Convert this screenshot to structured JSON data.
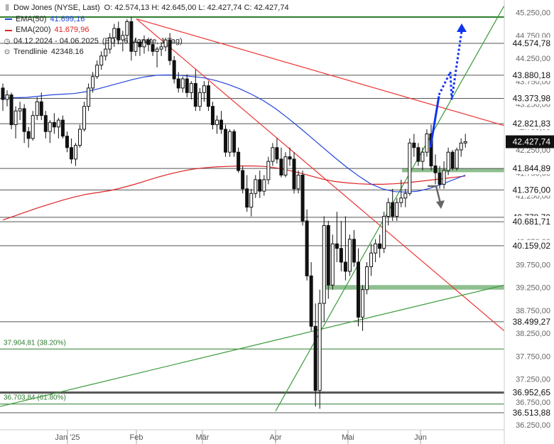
{
  "legend": {
    "instrument": "Dow Jones (NYSE, Last)",
    "ohlc": "O: 42.574,13  H: 42.645,00  L: 42.427,74  C: 42.427,74",
    "ema50_label": "EMA(50)",
    "ema50_value": "41.699,16",
    "ema200_label": "EMA(200)",
    "ema200_value": "41.679,96",
    "range": "04.12.2024 - 04.06.2025",
    "range_detail": "(EDT, 6 Monate, 1 Tag)",
    "trendline_label": "Trendlinie",
    "trendline_value": "42348.16"
  },
  "colors": {
    "candle": "#111111",
    "ema50": "#2244dd",
    "ema200": "#dd2222",
    "downtrend": "#ee3333",
    "uptrend": "#3a9a3a",
    "support_zone": "#8fbf8f",
    "arrow_blue": "#1133ee",
    "arrow_gray": "#666666",
    "level_line": "#555555"
  },
  "chart_data": {
    "type": "candlestick",
    "x_ticks": [
      "Jan '25",
      "Feb",
      "Mär",
      "Apr",
      "Mai",
      "Jun"
    ],
    "y_axis": {
      "min": 36250,
      "max": 45250,
      "step": 500,
      "tick_labels": [
        "45.250,00",
        "44.750,00",
        "44.250,00",
        "43.750,00",
        "43.250,00",
        "42.750,00",
        "42.250,00",
        "41.750,00",
        "41.250,00",
        "40.750,00",
        "40.250,00",
        "39.750,00",
        "39.250,00",
        "38.750,00",
        "38.250,00",
        "37.750,00",
        "37.250,00",
        "36.750,00",
        "36.250,00"
      ]
    },
    "levels": [
      {
        "value": 45150,
        "label": "",
        "color": "#2e7d2e"
      },
      {
        "value": 44574.78,
        "label": "44.574,78"
      },
      {
        "value": 43880.18,
        "label": "43.880,18"
      },
      {
        "value": 43373.98,
        "label": "43.373,98"
      },
      {
        "value": 42821.83,
        "label": "42.821,83"
      },
      {
        "value": 41844.89,
        "label": "41.844,89"
      },
      {
        "value": 41376.0,
        "label": "41.376,00"
      },
      {
        "value": 40778.7,
        "label": "40.778,70"
      },
      {
        "value": 40681.71,
        "label": "40.681,71"
      },
      {
        "value": 40159.02,
        "label": "40.159,02"
      },
      {
        "value": 38499.27,
        "label": "38.499,27"
      },
      {
        "value": 36952.65,
        "label": "36.952,65"
      },
      {
        "value": 36513.88,
        "label": "36.513,88"
      }
    ],
    "last_price": {
      "value": 42427.74,
      "label": "42.427,74"
    },
    "fib_levels": [
      {
        "value": 37904.81,
        "label": "37.904,81 (38.20%)",
        "color": "#2e7d2e"
      },
      {
        "value": 36703.84,
        "label": "36.703,84 (61.80%)",
        "color": "#2e7d2e"
      }
    ],
    "zones": [
      {
        "from": 39300,
        "to": 39200,
        "color": "#8fbf8f"
      },
      {
        "from": 41840,
        "to": 41780,
        "color": "#8fbf8f"
      }
    ],
    "candles": [
      [
        43600,
        43700,
        43100,
        43350
      ],
      [
        43350,
        43550,
        43200,
        43450
      ],
      [
        43450,
        43500,
        42700,
        42800
      ],
      [
        42800,
        43200,
        42500,
        43100
      ],
      [
        43100,
        43300,
        42900,
        43150
      ],
      [
        43150,
        43250,
        42400,
        42650
      ],
      [
        42650,
        42750,
        42300,
        42500
      ],
      [
        42500,
        43100,
        42450,
        43000
      ],
      [
        43000,
        43400,
        42900,
        43300
      ],
      [
        43300,
        43500,
        42900,
        43000
      ],
      [
        43000,
        43100,
        42500,
        42650
      ],
      [
        42650,
        42900,
        42400,
        42850
      ],
      [
        42850,
        43050,
        42600,
        42750
      ],
      [
        42750,
        42950,
        42500,
        42900
      ],
      [
        42900,
        43000,
        42500,
        42550
      ],
      [
        42550,
        42650,
        42200,
        42300
      ],
      [
        42300,
        42500,
        41950,
        42050
      ],
      [
        42050,
        42400,
        41900,
        42350
      ],
      [
        42350,
        42800,
        42300,
        42700
      ],
      [
        42700,
        43300,
        42650,
        43200
      ],
      [
        43200,
        43700,
        43100,
        43600
      ],
      [
        43600,
        43950,
        43500,
        43850
      ],
      [
        43850,
        44200,
        43800,
        44100
      ],
      [
        44100,
        44400,
        44000,
        44300
      ],
      [
        44300,
        44600,
        44200,
        44450
      ],
      [
        44450,
        44800,
        44350,
        44700
      ],
      [
        44700,
        45000,
        44500,
        44900
      ],
      [
        44900,
        45050,
        44550,
        44650
      ],
      [
        44650,
        44850,
        44400,
        44750
      ],
      [
        44750,
        45100,
        44600,
        45050
      ],
      [
        45050,
        45150,
        44200,
        44400
      ],
      [
        44400,
        44700,
        44300,
        44600
      ],
      [
        44600,
        44650,
        44300,
        44500
      ],
      [
        44500,
        44750,
        44350,
        44650
      ],
      [
        44650,
        44700,
        44400,
        44550
      ],
      [
        44550,
        44650,
        44300,
        44400
      ],
      [
        44400,
        44500,
        44050,
        44450
      ],
      [
        44450,
        44600,
        44300,
        44500
      ],
      [
        44500,
        44700,
        44400,
        44650
      ],
      [
        44650,
        44800,
        44100,
        44200
      ],
      [
        44200,
        44300,
        43700,
        43800
      ],
      [
        43800,
        43950,
        43500,
        43600
      ],
      [
        43600,
        43850,
        43500,
        43800
      ],
      [
        43800,
        43900,
        43400,
        43500
      ],
      [
        43500,
        43750,
        43350,
        43700
      ],
      [
        43700,
        44000,
        43100,
        43200
      ],
      [
        43200,
        43600,
        43100,
        43500
      ],
      [
        43500,
        43750,
        43300,
        43650
      ],
      [
        43650,
        43750,
        43100,
        43200
      ],
      [
        43200,
        43300,
        42700,
        42800
      ],
      [
        42800,
        43000,
        42600,
        42900
      ],
      [
        42900,
        43100,
        42600,
        42700
      ],
      [
        42700,
        42800,
        42100,
        42200
      ],
      [
        42200,
        42700,
        42100,
        42650
      ],
      [
        42650,
        42700,
        42100,
        42200
      ],
      [
        42200,
        42300,
        41750,
        41800
      ],
      [
        41800,
        41900,
        41300,
        41400
      ],
      [
        41400,
        41700,
        40900,
        41000
      ],
      [
        41000,
        41400,
        40800,
        41300
      ],
      [
        41300,
        41700,
        41200,
        41600
      ],
      [
        41600,
        41800,
        41200,
        41350
      ],
      [
        41350,
        41700,
        41250,
        41600
      ],
      [
        41600,
        42100,
        41500,
        42000
      ],
      [
        42000,
        42400,
        41900,
        42300
      ],
      [
        42300,
        42500,
        41950,
        42050
      ],
      [
        42050,
        42300,
        41650,
        41700
      ],
      [
        41700,
        42200,
        41650,
        42100
      ],
      [
        42100,
        42300,
        41900,
        42050
      ],
      [
        42050,
        42200,
        41300,
        41400
      ],
      [
        41400,
        41800,
        41300,
        41700
      ],
      [
        41700,
        41800,
        40600,
        40700
      ],
      [
        40700,
        40950,
        39400,
        39500
      ],
      [
        39500,
        39800,
        38300,
        38400
      ],
      [
        38400,
        38900,
        36650,
        37000
      ],
      [
        37000,
        39200,
        36600,
        38900
      ],
      [
        38900,
        40800,
        38500,
        40600
      ],
      [
        40600,
        40700,
        39000,
        39300
      ],
      [
        39300,
        40400,
        39200,
        40200
      ],
      [
        40200,
        40900,
        39800,
        40100
      ],
      [
        40100,
        40700,
        39600,
        39800
      ],
      [
        39800,
        40800,
        39400,
        39600
      ],
      [
        39600,
        40400,
        39500,
        40300
      ],
      [
        40300,
        40500,
        39700,
        39800
      ],
      [
        39800,
        40100,
        38400,
        38600
      ],
      [
        38600,
        39300,
        38300,
        39200
      ],
      [
        39200,
        39800,
        39100,
        39700
      ],
      [
        39700,
        40200,
        39500,
        40000
      ],
      [
        40000,
        40300,
        39800,
        40200
      ],
      [
        40200,
        40400,
        39900,
        40100
      ],
      [
        40100,
        40900,
        40000,
        40800
      ],
      [
        40800,
        41200,
        40600,
        41100
      ],
      [
        41100,
        41400,
        40700,
        40800
      ],
      [
        40800,
        41200,
        40700,
        41100
      ],
      [
        41100,
        41600,
        41000,
        41200
      ],
      [
        41200,
        41400,
        41000,
        41300
      ],
      [
        41300,
        42500,
        41250,
        42400
      ],
      [
        42400,
        42600,
        42100,
        42300
      ],
      [
        42300,
        42400,
        41900,
        42000
      ],
      [
        42000,
        42300,
        41800,
        42200
      ],
      [
        42200,
        42700,
        42100,
        42600
      ],
      [
        42600,
        42800,
        41800,
        41900
      ],
      [
        41900,
        42150,
        41500,
        41750
      ],
      [
        41750,
        41900,
        41400,
        41500
      ],
      [
        41500,
        42000,
        41400,
        41800
      ],
      [
        41800,
        42300,
        41700,
        42200
      ],
      [
        42200,
        42250,
        41800,
        41850
      ],
      [
        41850,
        42300,
        41800,
        42250
      ],
      [
        42250,
        42500,
        42100,
        42400
      ],
      [
        42400,
        42600,
        42300,
        42430
      ]
    ],
    "ema50": [
      43380,
      43390,
      43395,
      43420,
      43450,
      43465,
      43480,
      43520,
      43580,
      43650,
      43720,
      43790,
      43845,
      43880,
      43885,
      43875,
      43850,
      43820,
      43760,
      43680,
      43580,
      43460,
      43320,
      43150,
      42950,
      42740,
      42520,
      42300,
      42080,
      41870,
      41680,
      41510,
      41400,
      41340,
      41330,
      41350,
      41410,
      41500,
      41600,
      41699
    ],
    "ema200": [
      40720,
      40810,
      40900,
      40990,
      41070,
      41150,
      41220,
      41280,
      41320,
      41360,
      41420,
      41490,
      41570,
      41650,
      41720,
      41780,
      41830,
      41860,
      41880,
      41890,
      41900,
      41900,
      41890,
      41860,
      41810,
      41750,
      41680,
      41610,
      41560,
      41530,
      41510,
      41500,
      41500,
      41510,
      41530,
      41560,
      41590,
      41620,
      41650,
      41680
    ],
    "downtrend_line": {
      "from": [
        "Feb",
        45110
      ],
      "to": [
        "Jun+",
        42780
      ]
    },
    "steep_downtrend_line": {
      "from": [
        "Feb",
        45110
      ],
      "to": [
        "Jun+",
        38300
      ]
    },
    "uptrend_line": {
      "from": [
        "Apr",
        36550
      ],
      "to": [
        "Jun+",
        45400
      ]
    },
    "long_uptrend_line": {
      "from": [
        "Dec",
        36650
      ],
      "to": [
        "Jun+",
        39300
      ]
    }
  }
}
